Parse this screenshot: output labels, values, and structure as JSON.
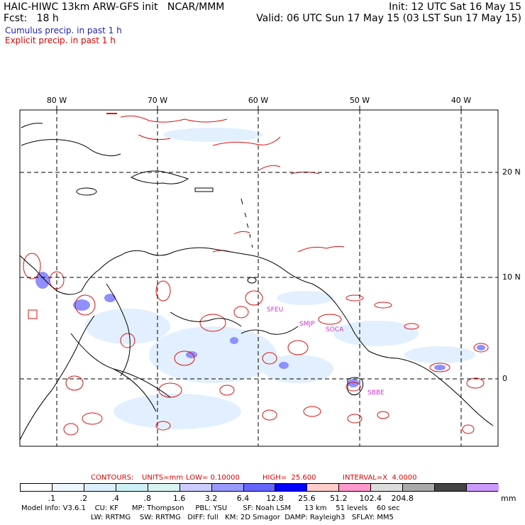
{
  "header": {
    "line1_left": "HAIC-HIWC 13km ARW-GFS init   NCAR/MMM",
    "line1_right": "Init: 12 UTC Sat 16 May 15",
    "line2_left": "Fcst:   18 h",
    "line2_right": "Valid: 06 UTC Sun 17 May 15 (03 LST Sun 17 May 15)",
    "line3": "Cumulus precip. in past 1 h",
    "line4": "Explicit precip. in past 1 h"
  },
  "colors": {
    "cumulus_title": "#2222aa",
    "explicit_title": "#dd0000",
    "contour": "#dd1111",
    "coast": "#000000"
  },
  "map": {
    "lon_labels": [
      "80 W",
      "70 W",
      "60 W",
      "50 W",
      "40 W"
    ],
    "lat_labels": [
      "20 N",
      "10 N",
      "0"
    ],
    "sites": [
      "SFEU",
      "SMJP",
      "SOCA",
      "SBBE"
    ]
  },
  "contours_line": {
    "contours": "CONTOURS:",
    "units": "UNITS=mm",
    "low": "LOW= 0.10000",
    "high": "HIGH=  25.600",
    "interval": "INTERVAL=X  4.0000"
  },
  "colorbar": {
    "colors": [
      "#ffffff",
      "#eef6ff",
      "#ddeeff",
      "#ccf0f6",
      "#d8f4f0",
      "#ccccff",
      "#9999ff",
      "#6666ff",
      "#0000ff",
      "#ffcccc",
      "#ff99cc",
      "#dddddd",
      "#aaaaaa",
      "#444444",
      "#cc99ff"
    ],
    "labels": [
      ".1",
      ".2",
      ".4",
      ".8",
      "1.6",
      "3.2",
      "6.4",
      "12.8",
      "25.6",
      "51.2",
      "102.4",
      "204.8"
    ],
    "unit": "mm"
  },
  "footer": {
    "line1": "Model Info: V3.6.1    CU: KF      MP: Thompson     PBL: YSU       SF: Noah LSM      13 km    51 levels    60 sec",
    "line2": "LW: RRTMG    SW: RRTMG   DIFF: full   KM: 2D Smagor  DAMP: Rayleigh3   SFLAY: MM5"
  }
}
